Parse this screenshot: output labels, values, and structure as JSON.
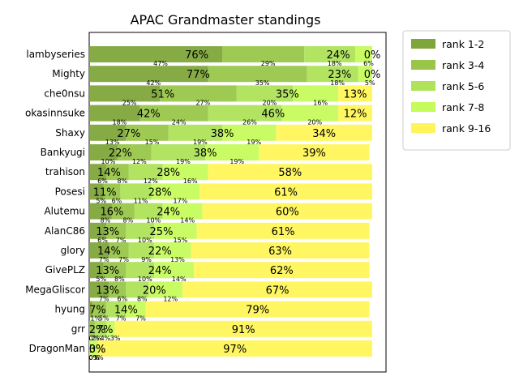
{
  "chart_data": {
    "type": "bar",
    "orientation": "horizontal",
    "stacked": true,
    "title": "APAC Grandmaster standings",
    "xlim": [
      0,
      100
    ],
    "legend_position": "upper-right-outside",
    "grid": false,
    "categories": [
      "lambyseries",
      "Mighty",
      "che0nsu",
      "okasinnsuke",
      "Shaxy",
      "Bankyugi",
      "trahison",
      "Posesi",
      "Alutemu",
      "AlanC86",
      "glory",
      "GivePLZ",
      "MegaGliscor",
      "hyung",
      "grr",
      "DragonMan"
    ],
    "series": [
      {
        "name": "rank 1-2",
        "color": "#7fa63b",
        "values": [
          47,
          42,
          25,
          18,
          13,
          10,
          6,
          5,
          8,
          6,
          7,
          5,
          7,
          1,
          0,
          0
        ]
      },
      {
        "name": "rank 3-4",
        "color": "#99c64a",
        "values": [
          29,
          35,
          27,
          24,
          15,
          12,
          8,
          6,
          8,
          7,
          7,
          8,
          6,
          5,
          2,
          0
        ]
      },
      {
        "name": "rank 5-6",
        "color": "#aee35a",
        "values": [
          18,
          18,
          20,
          26,
          19,
          19,
          12,
          11,
          10,
          10,
          9,
          10,
          8,
          7,
          4,
          0
        ]
      },
      {
        "name": "rank 7-8",
        "color": "#c6fb5c",
        "values": [
          6,
          5,
          16,
          20,
          19,
          19,
          16,
          17,
          14,
          15,
          13,
          14,
          12,
          7,
          3,
          3
        ]
      },
      {
        "name": "rank 9-16",
        "color": "#fff55a",
        "values": [
          0,
          0,
          12,
          12,
          34,
          39,
          58,
          61,
          60,
          61,
          63,
          62,
          67,
          79,
          91,
          97
        ]
      }
    ],
    "group_labels": [
      [
        "76%",
        "24%",
        "0%"
      ],
      [
        "77%",
        "23%",
        "0%"
      ],
      [
        "51%",
        "35%",
        "13%"
      ],
      [
        "42%",
        "46%",
        "12%"
      ],
      [
        "27%",
        "38%",
        "34%"
      ],
      [
        "22%",
        "38%",
        "39%"
      ],
      [
        "14%",
        "28%",
        "58%"
      ],
      [
        "11%",
        "28%",
        "61%"
      ],
      [
        "16%",
        "24%",
        "60%"
      ],
      [
        "13%",
        "25%",
        "61%"
      ],
      [
        "14%",
        "22%",
        "63%"
      ],
      [
        "13%",
        "24%",
        "62%"
      ],
      [
        "13%",
        "20%",
        "67%"
      ],
      [
        "7%",
        "14%",
        "79%"
      ],
      [
        "2%",
        "7%",
        "91%"
      ],
      [
        "0%",
        "3%",
        "97%"
      ]
    ],
    "segment_labels": [
      [
        "47%",
        "29%",
        "18%",
        "6%"
      ],
      [
        "42%",
        "35%",
        "18%",
        "5%"
      ],
      [
        "25%",
        "27%",
        "20%",
        "16%"
      ],
      [
        "18%",
        "24%",
        "26%",
        "20%"
      ],
      [
        "13%",
        "15%",
        "19%",
        "19%"
      ],
      [
        "10%",
        "12%",
        "19%",
        "19%"
      ],
      [
        "6%",
        "8%",
        "12%",
        "16%"
      ],
      [
        "5%",
        "6%",
        "11%",
        "17%"
      ],
      [
        "8%",
        "8%",
        "10%",
        "14%"
      ],
      [
        "6%",
        "7%",
        "10%",
        "15%"
      ],
      [
        "7%",
        "7%",
        "9%",
        "13%"
      ],
      [
        "5%",
        "8%",
        "10%",
        "14%"
      ],
      [
        "7%",
        "6%",
        "8%",
        "12%"
      ],
      [
        "1%",
        "5%",
        "7%",
        "7%"
      ],
      [
        "0%",
        "2%",
        "4%",
        "3%"
      ],
      [
        "0%",
        "0%",
        "0%",
        "3%"
      ]
    ]
  }
}
